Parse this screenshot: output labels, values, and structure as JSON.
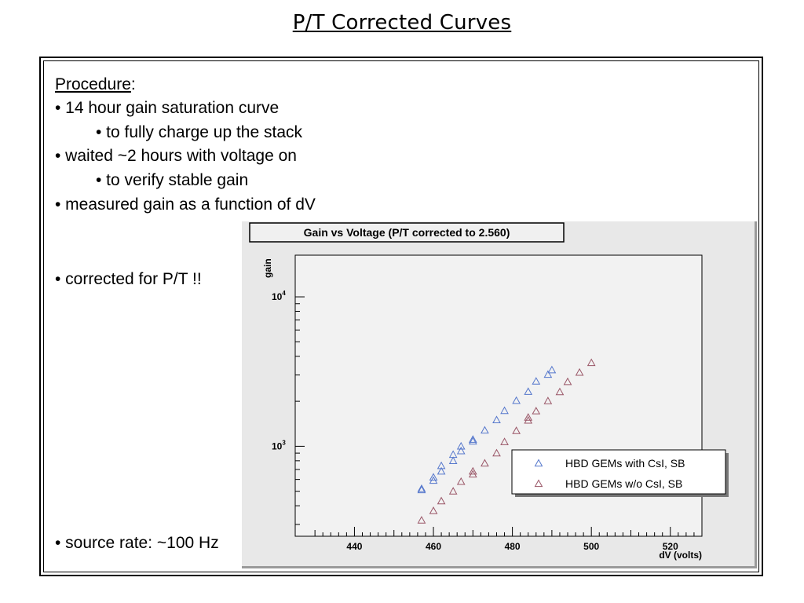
{
  "slide": {
    "title": "P/T Corrected Curves"
  },
  "procedure": {
    "heading": "Procedure",
    "colon": ":",
    "items": [
      "• 14 hour gain saturation curve",
      "• to fully charge up the stack",
      "• waited ~2 hours with voltage on",
      "• to verify stable gain",
      "• measured gain as a function of dV",
      "• corrected for P/T !!",
      "• source rate: ~100 Hz"
    ]
  },
  "chart_data": {
    "type": "scatter",
    "title": "Gain vs Voltage (P/T corrected to 2.560)",
    "xlabel": "dV (volts)",
    "ylabel": "gain",
    "xlim": [
      425,
      528
    ],
    "ylim": [
      250,
      19000
    ],
    "yscale": "log",
    "x_ticks": [
      440,
      460,
      480,
      500,
      520
    ],
    "y_tick_labels": [
      {
        "base": "10",
        "exp": "3",
        "value": 1000
      },
      {
        "base": "10",
        "exp": "4",
        "value": 10000
      }
    ],
    "grid": false,
    "legend_position": "bottom-right",
    "series": [
      {
        "name": "HBD GEMs with CsI, SB",
        "color": "#5577cc",
        "marker": "triangle-open",
        "points": [
          [
            457,
            510
          ],
          [
            457,
            520
          ],
          [
            460,
            590
          ],
          [
            460,
            620
          ],
          [
            462,
            680
          ],
          [
            462,
            740
          ],
          [
            465,
            800
          ],
          [
            465,
            880
          ],
          [
            467,
            930
          ],
          [
            467,
            1000
          ],
          [
            470,
            1080
          ],
          [
            470,
            1110
          ],
          [
            473,
            1280
          ],
          [
            476,
            1500
          ],
          [
            478,
            1730
          ],
          [
            481,
            2020
          ],
          [
            484,
            2320
          ],
          [
            486,
            2720
          ],
          [
            489,
            3020
          ],
          [
            490,
            3240
          ]
        ]
      },
      {
        "name": "HBD GEMs w/o  CsI, SB",
        "color": "#995566",
        "marker": "triangle-open",
        "points": [
          [
            457,
            320
          ],
          [
            460,
            370
          ],
          [
            462,
            430
          ],
          [
            465,
            500
          ],
          [
            467,
            580
          ],
          [
            470,
            650
          ],
          [
            470,
            680
          ],
          [
            473,
            770
          ],
          [
            476,
            900
          ],
          [
            478,
            1070
          ],
          [
            481,
            1270
          ],
          [
            484,
            1490
          ],
          [
            484,
            1560
          ],
          [
            486,
            1720
          ],
          [
            489,
            2010
          ],
          [
            492,
            2310
          ],
          [
            494,
            2700
          ],
          [
            497,
            3120
          ],
          [
            500,
            3620
          ]
        ]
      }
    ]
  }
}
